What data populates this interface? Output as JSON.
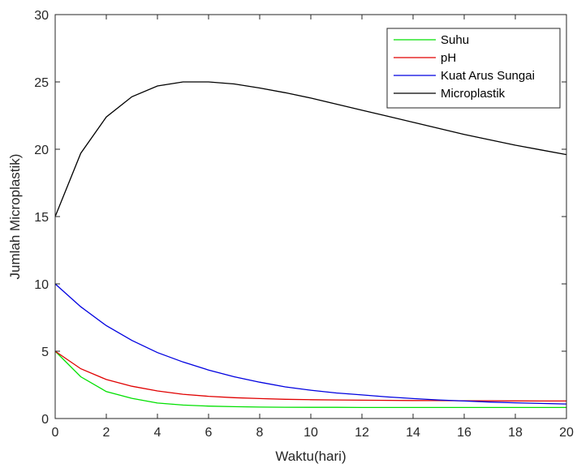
{
  "chart_data": {
    "type": "line",
    "title": "",
    "xlabel": "Waktu(hari)",
    "ylabel": "Jumlah Microplastik)",
    "xlim": [
      0,
      20
    ],
    "ylim": [
      0,
      30
    ],
    "xticks": [
      0,
      2,
      4,
      6,
      8,
      10,
      12,
      14,
      16,
      18,
      20
    ],
    "yticks": [
      0,
      5,
      10,
      15,
      20,
      25,
      30
    ],
    "grid": false,
    "legend_position": "top-right",
    "x": [
      0,
      1,
      2,
      3,
      4,
      5,
      6,
      7,
      8,
      9,
      10,
      11,
      12,
      13,
      14,
      15,
      16,
      17,
      18,
      19,
      20
    ],
    "series": [
      {
        "name": "Suhu",
        "color": "#00e000",
        "values": [
          5.0,
          3.1,
          2.0,
          1.5,
          1.15,
          1.0,
          0.92,
          0.88,
          0.85,
          0.84,
          0.83,
          0.83,
          0.82,
          0.82,
          0.82,
          0.82,
          0.82,
          0.82,
          0.82,
          0.82,
          0.82
        ]
      },
      {
        "name": "pH",
        "color": "#e00000",
        "values": [
          5.0,
          3.7,
          2.9,
          2.4,
          2.05,
          1.8,
          1.65,
          1.55,
          1.48,
          1.43,
          1.4,
          1.38,
          1.36,
          1.35,
          1.34,
          1.33,
          1.32,
          1.32,
          1.31,
          1.3,
          1.3
        ]
      },
      {
        "name": "Kuat Arus Sungai",
        "color": "#0000e0",
        "values": [
          10.0,
          8.3,
          6.9,
          5.8,
          4.9,
          4.2,
          3.6,
          3.1,
          2.7,
          2.35,
          2.1,
          1.9,
          1.75,
          1.6,
          1.48,
          1.38,
          1.3,
          1.22,
          1.17,
          1.12,
          1.08
        ]
      },
      {
        "name": "Microplastik",
        "color": "#000000",
        "values": [
          15.0,
          19.7,
          22.4,
          23.9,
          24.7,
          25.0,
          25.0,
          24.85,
          24.55,
          24.2,
          23.8,
          23.35,
          22.9,
          22.45,
          22.0,
          21.55,
          21.1,
          20.7,
          20.3,
          19.95,
          19.6
        ]
      }
    ]
  }
}
